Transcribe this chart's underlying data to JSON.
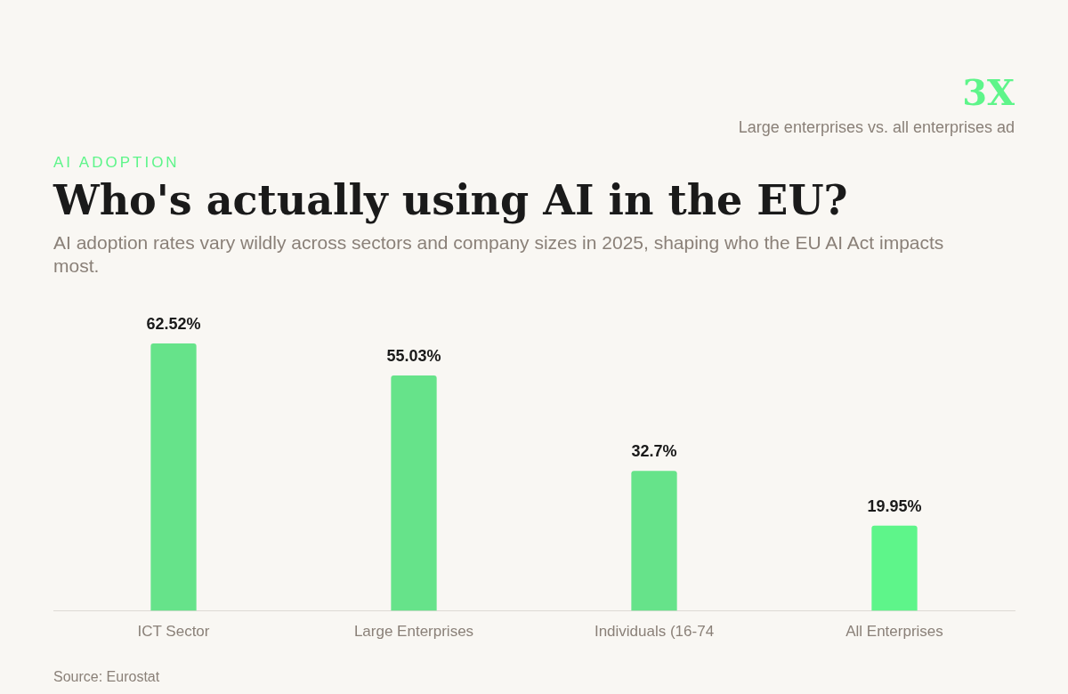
{
  "chart_data": {
    "type": "bar",
    "title": "Who's actually using AI in the EU?",
    "subtitle": "AI adoption rates vary wildly across sectors and company sizes in 2025, shaping who the EU AI Act impacts most.",
    "annotations": [
      "AI ADOPTION",
      "3X",
      "Large enterprises vs. all enterprises ad",
      "Source: Eurostat"
    ],
    "categories": [
      "ICT Sector",
      "Large Enterprises",
      "Individuals (16-74",
      "All Enterprises"
    ],
    "values": [
      62.52,
      55.03,
      32.7,
      19.95
    ],
    "colors": [
      "#66e38a",
      "#66e38a",
      "#66e38a",
      "#5ef58a"
    ],
    "value_labels": [
      "62.52%",
      "55.03%",
      "32.7%",
      "19.95%"
    ],
    "grid": false,
    "legend": false
  }
}
